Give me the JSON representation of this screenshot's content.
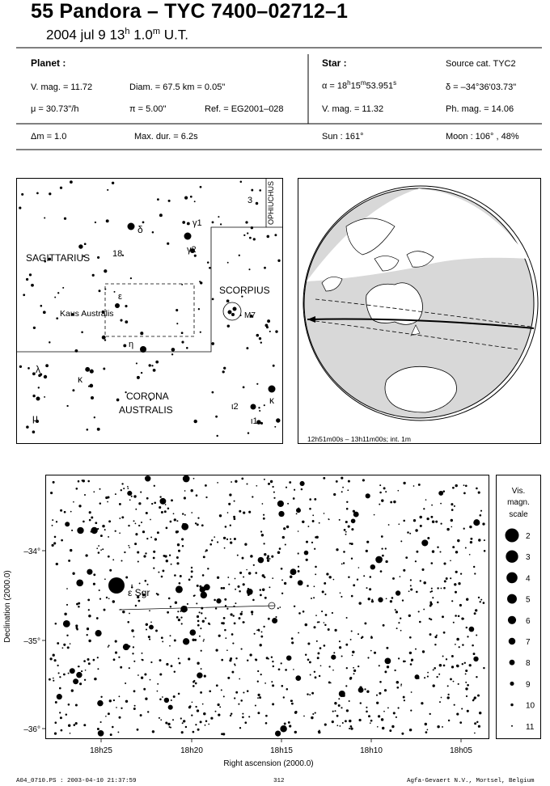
{
  "header": {
    "title": "55 Pandora  –  TYC 7400–02712–1",
    "subtitle": "2004 jul  9  13h 1.0m U.T."
  },
  "info": {
    "planet_label": "Planet :",
    "star_label": "Star :",
    "source_cat": "Source cat.  TYC2",
    "v_mag_planet": "V. mag. = 11.72",
    "diam": "Diam. = 67.5 km = 0.05\"",
    "alpha": "α = 18h15m53.951s",
    "delta": "δ = –34°36'03.73\"",
    "mu": "μ =  30.73\"/h",
    "pi": "π =  5.00\"",
    "ref": "Ref. = EG2001–028",
    "v_mag_star": "V. mag. = 11.32",
    "ph_mag": "Ph. mag. = 14.06",
    "dm": "Δm = 1.0",
    "max_dur": "Max. dur. = 6.2s",
    "sun": "Sun : 161°",
    "moon": "Moon : 106° , 48%"
  },
  "finder_chart": {
    "constellations": [
      "SAGITTARIUS",
      "SCORPIUS",
      "CORONA",
      "AUSTRALIS",
      "OPHIUCHUS"
    ],
    "star_labels": [
      "δ",
      "γ1",
      "γ2",
      "18",
      "ε",
      "Kaus Australis",
      "η",
      "λ",
      "κ",
      "μ",
      "M7",
      "κ",
      "ι2",
      "ι1",
      "3"
    ]
  },
  "globe": {
    "caption": "12h51m00s – 13h11m00s; int.  1m"
  },
  "star_field": {
    "y_ticks": [
      "–34°",
      "–35°",
      "–36°"
    ],
    "x_ticks": [
      "18h25",
      "18h20",
      "18h15",
      "18h10",
      "18h05"
    ],
    "xlabel": "Right ascension (2000.0)",
    "ylabel": "Declination (2000.0)",
    "star_name": "ε Sgr"
  },
  "legend": {
    "title_lines": [
      "Vis.",
      "magn.",
      "scale"
    ],
    "magnitudes": [
      "2",
      "3",
      "4",
      "5",
      "6",
      "7",
      "8",
      "9",
      "10",
      "11"
    ]
  },
  "footer": {
    "left": "A04_0710.PS : 2003-04-10 21:37:59",
    "center": "312",
    "right": "Agfa-Gevaert N.V., Mortsel, Belgium"
  }
}
